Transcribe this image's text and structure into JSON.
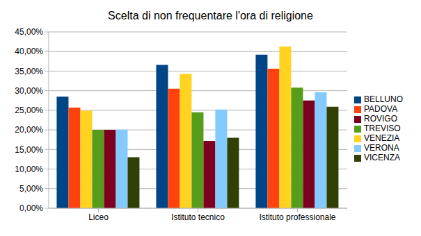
{
  "chart_data": {
    "type": "bar",
    "title": "Scelta di non frequentare l'ora di religione",
    "categories": [
      "Liceo",
      "Istituto tecnico",
      "Istituto professionale"
    ],
    "series": [
      {
        "name": "BELLUNO",
        "color": "#004586",
        "values": [
          28.5,
          36.6,
          39.2
        ]
      },
      {
        "name": "PADOVA",
        "color": "#ff420e",
        "values": [
          25.7,
          30.5,
          35.6
        ]
      },
      {
        "name": "VENEZIA",
        "color": "#ffd320",
        "values": [
          24.9,
          34.3,
          41.3
        ]
      },
      {
        "name": "TREVISO",
        "color": "#579d1c",
        "values": [
          20.0,
          24.5,
          30.8
        ]
      },
      {
        "name": "ROVIGO",
        "color": "#7e0021",
        "values": [
          20.0,
          17.2,
          27.5
        ]
      },
      {
        "name": "VERONA",
        "color": "#83caff",
        "values": [
          20.0,
          25.2,
          29.6
        ]
      },
      {
        "name": "VICENZA",
        "color": "#314004",
        "values": [
          13.0,
          18.0,
          25.9
        ]
      }
    ],
    "ylim": [
      0,
      45
    ],
    "yticks": [
      {
        "value": 0,
        "label": "0,00%"
      },
      {
        "value": 5,
        "label": "5,00%"
      },
      {
        "value": 10,
        "label": "10,00%"
      },
      {
        "value": 15,
        "label": "15,00%"
      },
      {
        "value": 20,
        "label": "20,00%"
      },
      {
        "value": 25,
        "label": "25,00%"
      },
      {
        "value": 30,
        "label": "30,00%"
      },
      {
        "value": 35,
        "label": "35,00%"
      },
      {
        "value": 40,
        "label": "40,00%"
      },
      {
        "value": 45,
        "label": "45,00%"
      }
    ],
    "grid": true,
    "legend": "right"
  }
}
